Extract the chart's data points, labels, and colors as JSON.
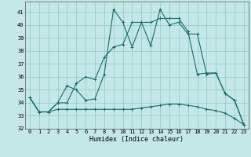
{
  "xlabel": "Humidex (Indice chaleur)",
  "xlim": [
    -0.5,
    23.5
  ],
  "ylim": [
    32,
    41.8
  ],
  "yticks": [
    32,
    33,
    34,
    35,
    36,
    37,
    38,
    39,
    40,
    41
  ],
  "xticks": [
    0,
    1,
    2,
    3,
    4,
    5,
    6,
    7,
    8,
    9,
    10,
    11,
    12,
    13,
    14,
    15,
    16,
    17,
    18,
    19,
    20,
    21,
    22,
    23
  ],
  "background_color": "#c4e8e8",
  "grid_color": "#8fc8c8",
  "line_color": "#1a6b6b",
  "line1_y": [
    34.4,
    33.3,
    33.3,
    34.0,
    35.3,
    35.0,
    34.2,
    34.3,
    36.2,
    41.2,
    40.2,
    38.3,
    40.2,
    38.4,
    41.2,
    40.0,
    40.2,
    39.3,
    39.3,
    36.2,
    36.3,
    34.7,
    34.2,
    32.3
  ],
  "line2_y": [
    34.4,
    33.3,
    33.3,
    34.0,
    34.0,
    35.5,
    36.0,
    35.8,
    37.5,
    38.3,
    38.5,
    40.2,
    40.2,
    40.2,
    40.5,
    40.5,
    40.5,
    39.5,
    36.2,
    36.3,
    36.3,
    34.7,
    34.2,
    32.3
  ],
  "line3_y": [
    34.4,
    33.3,
    33.3,
    33.5,
    33.5,
    33.5,
    33.5,
    33.5,
    33.5,
    33.5,
    33.5,
    33.5,
    33.6,
    33.7,
    33.8,
    33.9,
    33.9,
    33.8,
    33.7,
    33.5,
    33.4,
    33.2,
    32.8,
    32.3
  ]
}
